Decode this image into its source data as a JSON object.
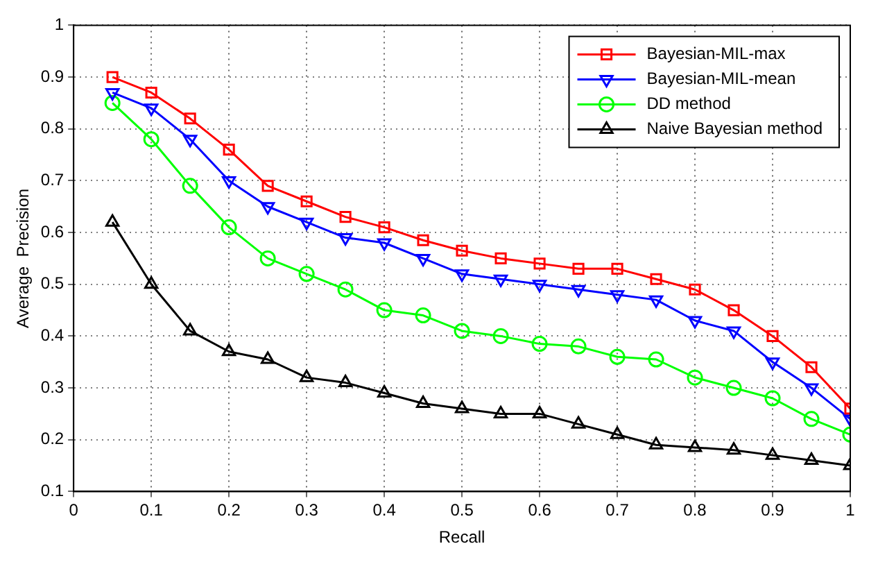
{
  "chart_data": {
    "type": "line",
    "xlabel": "Recall",
    "ylabel": "Average  Precision",
    "x": [
      0.05,
      0.1,
      0.15,
      0.2,
      0.25,
      0.3,
      0.35,
      0.4,
      0.45,
      0.5,
      0.55,
      0.6,
      0.65,
      0.7,
      0.75,
      0.8,
      0.85,
      0.9,
      0.95,
      1
    ],
    "xlim": [
      0,
      1
    ],
    "xticks": [
      0,
      0.1,
      0.2,
      0.3,
      0.4,
      0.5,
      0.6,
      0.7,
      0.8,
      0.9,
      1
    ],
    "ylim": [
      0.1,
      1
    ],
    "yticks": [
      0.1,
      0.2,
      0.3,
      0.4,
      0.5,
      0.6,
      0.7,
      0.8,
      0.9,
      1
    ],
    "grid": true,
    "legend": "top right",
    "line_style": "solid",
    "series": [
      {
        "name": "Bayesian-MIL-max",
        "color": "#ff0000",
        "marker": "square",
        "values": [
          0.9,
          0.87,
          0.82,
          0.76,
          0.69,
          0.66,
          0.63,
          0.61,
          0.585,
          0.565,
          0.55,
          0.54,
          0.53,
          0.53,
          0.51,
          0.49,
          0.45,
          0.4,
          0.34,
          0.26
        ]
      },
      {
        "name": "Bayesian-MIL-mean",
        "color": "#0000ff",
        "marker": "triangle-down",
        "values": [
          0.87,
          0.84,
          0.78,
          0.7,
          0.65,
          0.62,
          0.59,
          0.58,
          0.55,
          0.52,
          0.51,
          0.5,
          0.49,
          0.48,
          0.47,
          0.43,
          0.41,
          0.35,
          0.3,
          0.24
        ]
      },
      {
        "name": "DD method",
        "color": "#00ff00",
        "marker": "circle",
        "values": [
          0.85,
          0.78,
          0.69,
          0.61,
          0.55,
          0.52,
          0.49,
          0.45,
          0.44,
          0.41,
          0.4,
          0.385,
          0.38,
          0.36,
          0.355,
          0.32,
          0.3,
          0.28,
          0.24,
          0.21
        ]
      },
      {
        "name": "Naive Bayesian method",
        "color": "#000000",
        "marker": "triangle",
        "values": [
          0.62,
          0.5,
          0.41,
          0.37,
          0.355,
          0.32,
          0.31,
          0.29,
          0.27,
          0.26,
          0.25,
          0.25,
          0.23,
          0.21,
          0.19,
          0.185,
          0.18,
          0.17,
          0.16,
          0.15
        ]
      }
    ]
  }
}
